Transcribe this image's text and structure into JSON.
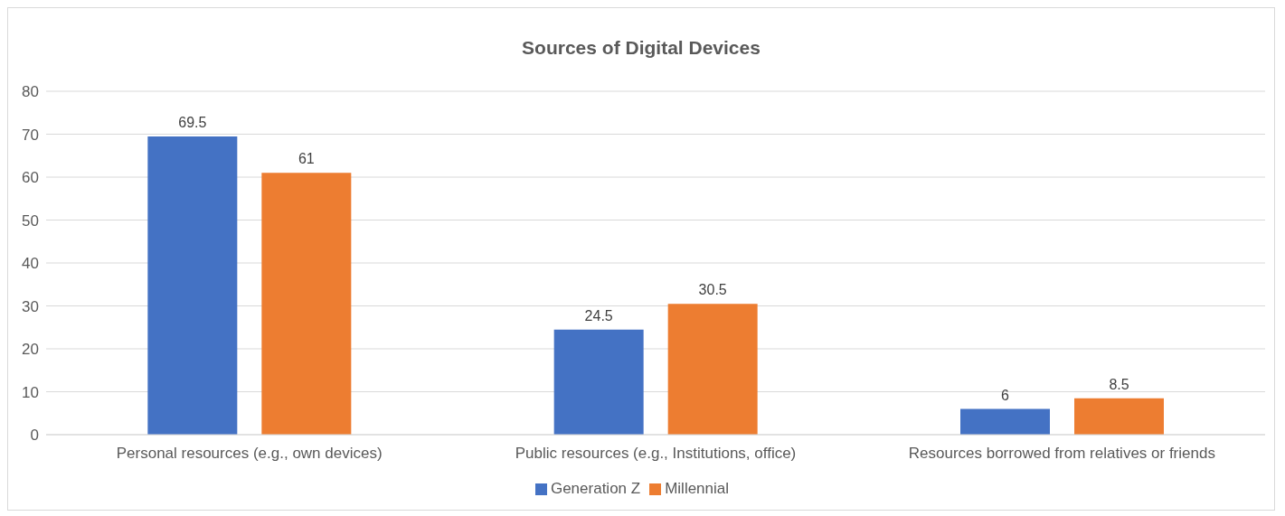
{
  "chart_data": {
    "type": "bar",
    "title": "Sources of Digital Devices",
    "categories": [
      "Personal resources (e.g., own devices)",
      "Public resources (e.g., Institutions, office)",
      "Resources borrowed from relatives or friends"
    ],
    "series": [
      {
        "name": "Generation Z",
        "color": "#4472c4",
        "values": [
          69.5,
          24.5,
          6
        ]
      },
      {
        "name": "Millennial",
        "color": "#ed7d31",
        "values": [
          61,
          30.5,
          8.5
        ]
      }
    ],
    "ylim": [
      0,
      80
    ],
    "yticks": [
      0,
      10,
      20,
      30,
      40,
      50,
      60,
      70,
      80
    ],
    "grid": "y",
    "legend": "bottom",
    "data_labels": true
  }
}
